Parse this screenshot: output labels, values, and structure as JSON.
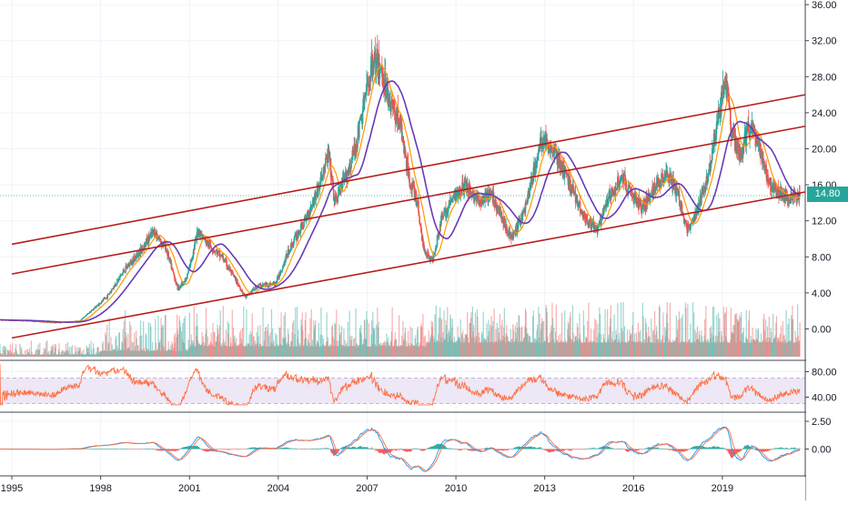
{
  "colors": {
    "up": "#26a69a",
    "down": "#ef5350",
    "channel": "#b71c1c",
    "ma_fast": "#ff9800",
    "ma_slow": "#673ab7",
    "rsi_line": "#ff7043",
    "rsi_band": "#ede7f6",
    "macd_line": "#2196f3",
    "signal_line": "#ff7043",
    "price_tag_bg": "#26a69a",
    "grid": "#f0f3fa",
    "axis_text": "#131722"
  },
  "price_tag": "14.80",
  "chart_data": [
    {
      "type": "candlestick",
      "title": "",
      "x_ticks": [
        "1995",
        "1998",
        "2001",
        "2004",
        "2007",
        "2010",
        "2013",
        "2016",
        "2019"
      ],
      "y_ticks": [
        "0.00",
        "4.00",
        "8.00",
        "12.00",
        "16.00",
        "20.00",
        "24.00",
        "28.00",
        "32.00",
        "36.00"
      ],
      "ylim": [
        -3,
        36
      ],
      "xlim": [
        1994.6,
        2021.8
      ],
      "last_price": 14.8,
      "price_path": [
        [
          1994.6,
          1.0
        ],
        [
          1995.5,
          0.9
        ],
        [
          1996.5,
          0.7
        ],
        [
          1997.3,
          0.9
        ],
        [
          1998.2,
          3.5
        ],
        [
          1998.8,
          6.5
        ],
        [
          1999.3,
          8.5
        ],
        [
          1999.8,
          10.8
        ],
        [
          2000.2,
          9.0
        ],
        [
          2000.6,
          4.5
        ],
        [
          2000.9,
          5.5
        ],
        [
          2001.3,
          11.0
        ],
        [
          2001.6,
          9.5
        ],
        [
          2002.1,
          8.0
        ],
        [
          2002.6,
          5.2
        ],
        [
          2002.9,
          3.5
        ],
        [
          2003.3,
          4.8
        ],
        [
          2003.9,
          5.0
        ],
        [
          2004.4,
          9.0
        ],
        [
          2004.9,
          12.0
        ],
        [
          2005.4,
          16.0
        ],
        [
          2005.7,
          19.5
        ],
        [
          2005.9,
          14.0
        ],
        [
          2006.3,
          17.0
        ],
        [
          2006.6,
          20.0
        ],
        [
          2006.9,
          25.0
        ],
        [
          2007.2,
          30.0
        ],
        [
          2007.5,
          28.5
        ],
        [
          2007.8,
          25.0
        ],
        [
          2008.1,
          23.0
        ],
        [
          2008.4,
          17.0
        ],
        [
          2008.7,
          14.0
        ],
        [
          2008.9,
          9.0
        ],
        [
          2009.2,
          7.5
        ],
        [
          2009.5,
          12.0
        ],
        [
          2009.9,
          14.5
        ],
        [
          2010.3,
          16.0
        ],
        [
          2010.8,
          14.0
        ],
        [
          2011.2,
          15.0
        ],
        [
          2011.6,
          12.0
        ],
        [
          2011.9,
          10.0
        ],
        [
          2012.3,
          13.0
        ],
        [
          2012.6,
          17.0
        ],
        [
          2012.9,
          21.0
        ],
        [
          2013.3,
          20.0
        ],
        [
          2013.7,
          17.0
        ],
        [
          2014.0,
          15.0
        ],
        [
          2014.4,
          12.0
        ],
        [
          2014.8,
          11.0
        ],
        [
          2015.1,
          14.0
        ],
        [
          2015.6,
          17.0
        ],
        [
          2015.9,
          15.0
        ],
        [
          2016.3,
          13.5
        ],
        [
          2016.8,
          16.0
        ],
        [
          2017.1,
          17.5
        ],
        [
          2017.5,
          15.0
        ],
        [
          2017.8,
          11.0
        ],
        [
          2018.1,
          12.5
        ],
        [
          2018.5,
          17.0
        ],
        [
          2018.9,
          24.0
        ],
        [
          2019.1,
          28.0
        ],
        [
          2019.3,
          22.0
        ],
        [
          2019.6,
          19.0
        ],
        [
          2019.9,
          22.5
        ],
        [
          2020.2,
          20.5
        ],
        [
          2020.6,
          16.0
        ],
        [
          2021.0,
          15.0
        ],
        [
          2021.3,
          14.5
        ],
        [
          2021.6,
          14.8
        ]
      ],
      "channel_lines": [
        {
          "name": "channel-upper",
          "from": [
            1995.0,
            9.4
          ],
          "to": [
            2021.8,
            26.0
          ]
        },
        {
          "name": "channel-middle",
          "from": [
            1995.0,
            6.1
          ],
          "to": [
            2021.8,
            22.5
          ]
        },
        {
          "name": "channel-lower",
          "from": [
            1995.0,
            -1.0
          ],
          "to": [
            2021.8,
            15.2
          ]
        }
      ]
    },
    {
      "type": "line",
      "title": "",
      "y_ticks": [
        "40.00",
        "80.00"
      ],
      "ylim": [
        25,
        96
      ],
      "band": [
        30,
        70
      ],
      "xlim": [
        1994.6,
        2021.8
      ]
    },
    {
      "type": "line",
      "title": "",
      "y_ticks": [
        "0.00",
        "2.50"
      ],
      "ylim": [
        -2.5,
        3.0
      ],
      "xlim": [
        1994.6,
        2021.8
      ]
    }
  ]
}
